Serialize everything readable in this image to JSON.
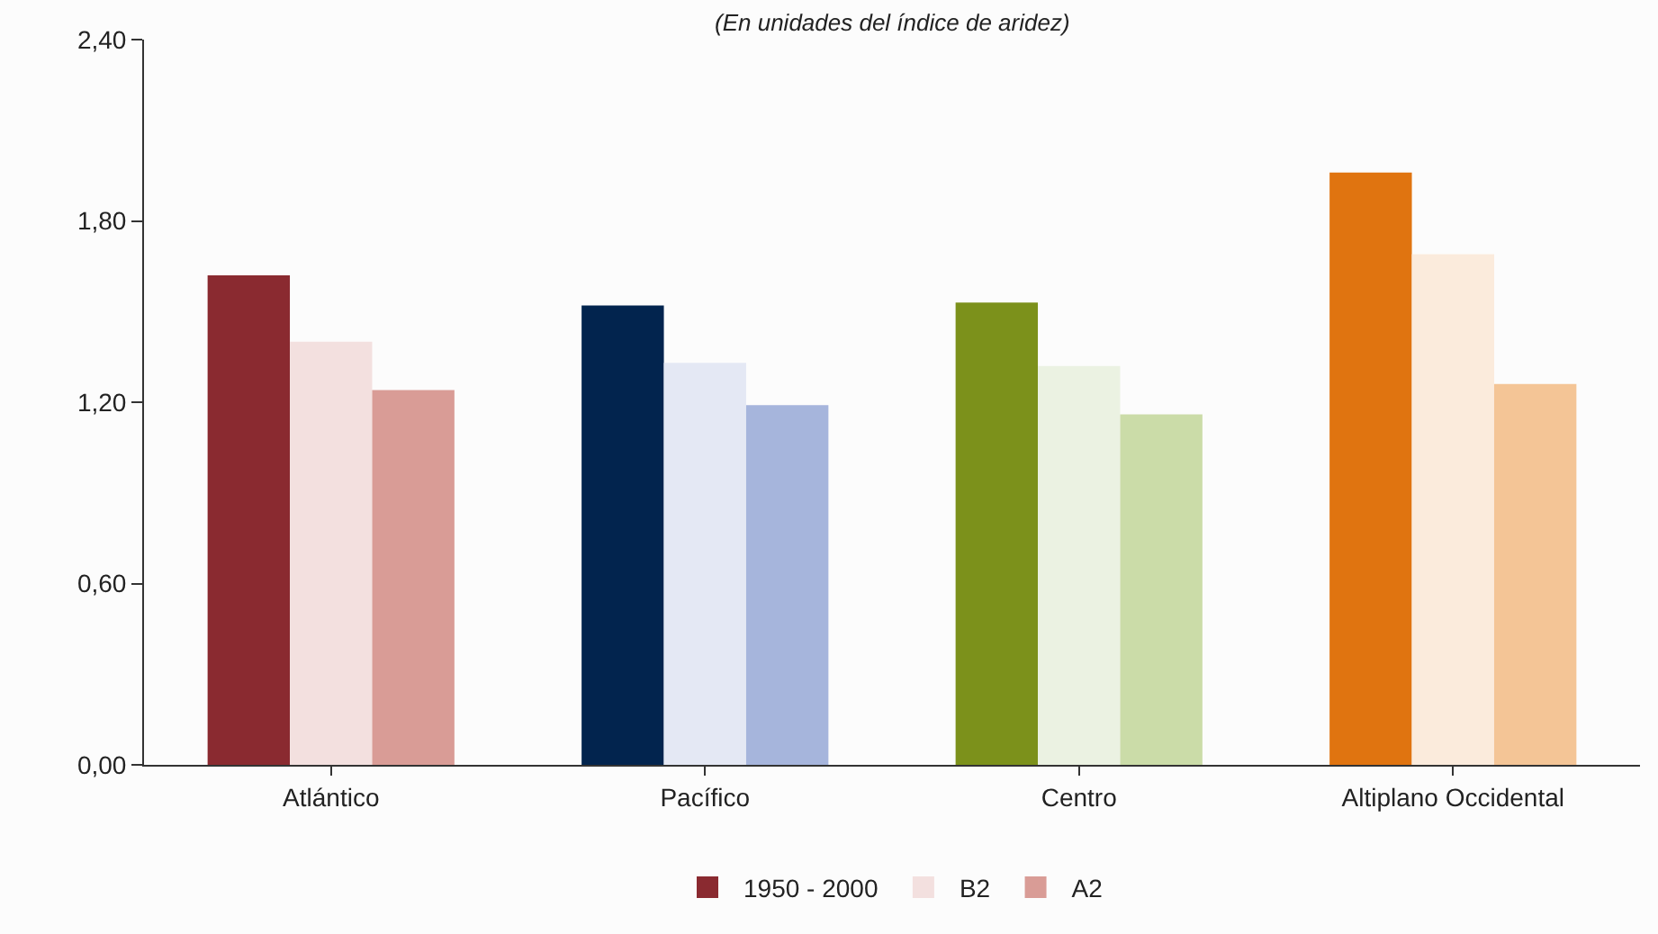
{
  "chart_data": {
    "type": "bar",
    "subtitle": "(En unidades del índice de aridez)",
    "categories": [
      "Atlántico",
      "Pacífico",
      "Centro",
      "Altiplano Occidental"
    ],
    "series": [
      {
        "name": "1950 - 2000",
        "colors": [
          "#8a2a30",
          "#02244e",
          "#7c911b",
          "#e07410"
        ],
        "values": [
          1.62,
          1.52,
          1.53,
          1.96
        ]
      },
      {
        "name": "B2",
        "colors": [
          "#f3e0df",
          "#e4e8f4",
          "#ebf2e2",
          "#fbebdc"
        ],
        "values": [
          1.4,
          1.33,
          1.32,
          1.69
        ]
      },
      {
        "name": "A2",
        "colors": [
          "#d99c96",
          "#a6b5dc",
          "#cbdca8",
          "#f4c596"
        ],
        "values": [
          1.24,
          1.19,
          1.16,
          1.26
        ]
      }
    ],
    "ylim": [
      0,
      2.4
    ],
    "yticks": [
      {
        "value": 0,
        "label": "0,00"
      },
      {
        "value": 0.6,
        "label": "0,60"
      },
      {
        "value": 1.2,
        "label": "1,20"
      },
      {
        "value": 1.8,
        "label": "1,80"
      },
      {
        "value": 2.4,
        "label": "2,40"
      }
    ],
    "grid": false,
    "legend": "bottom"
  }
}
